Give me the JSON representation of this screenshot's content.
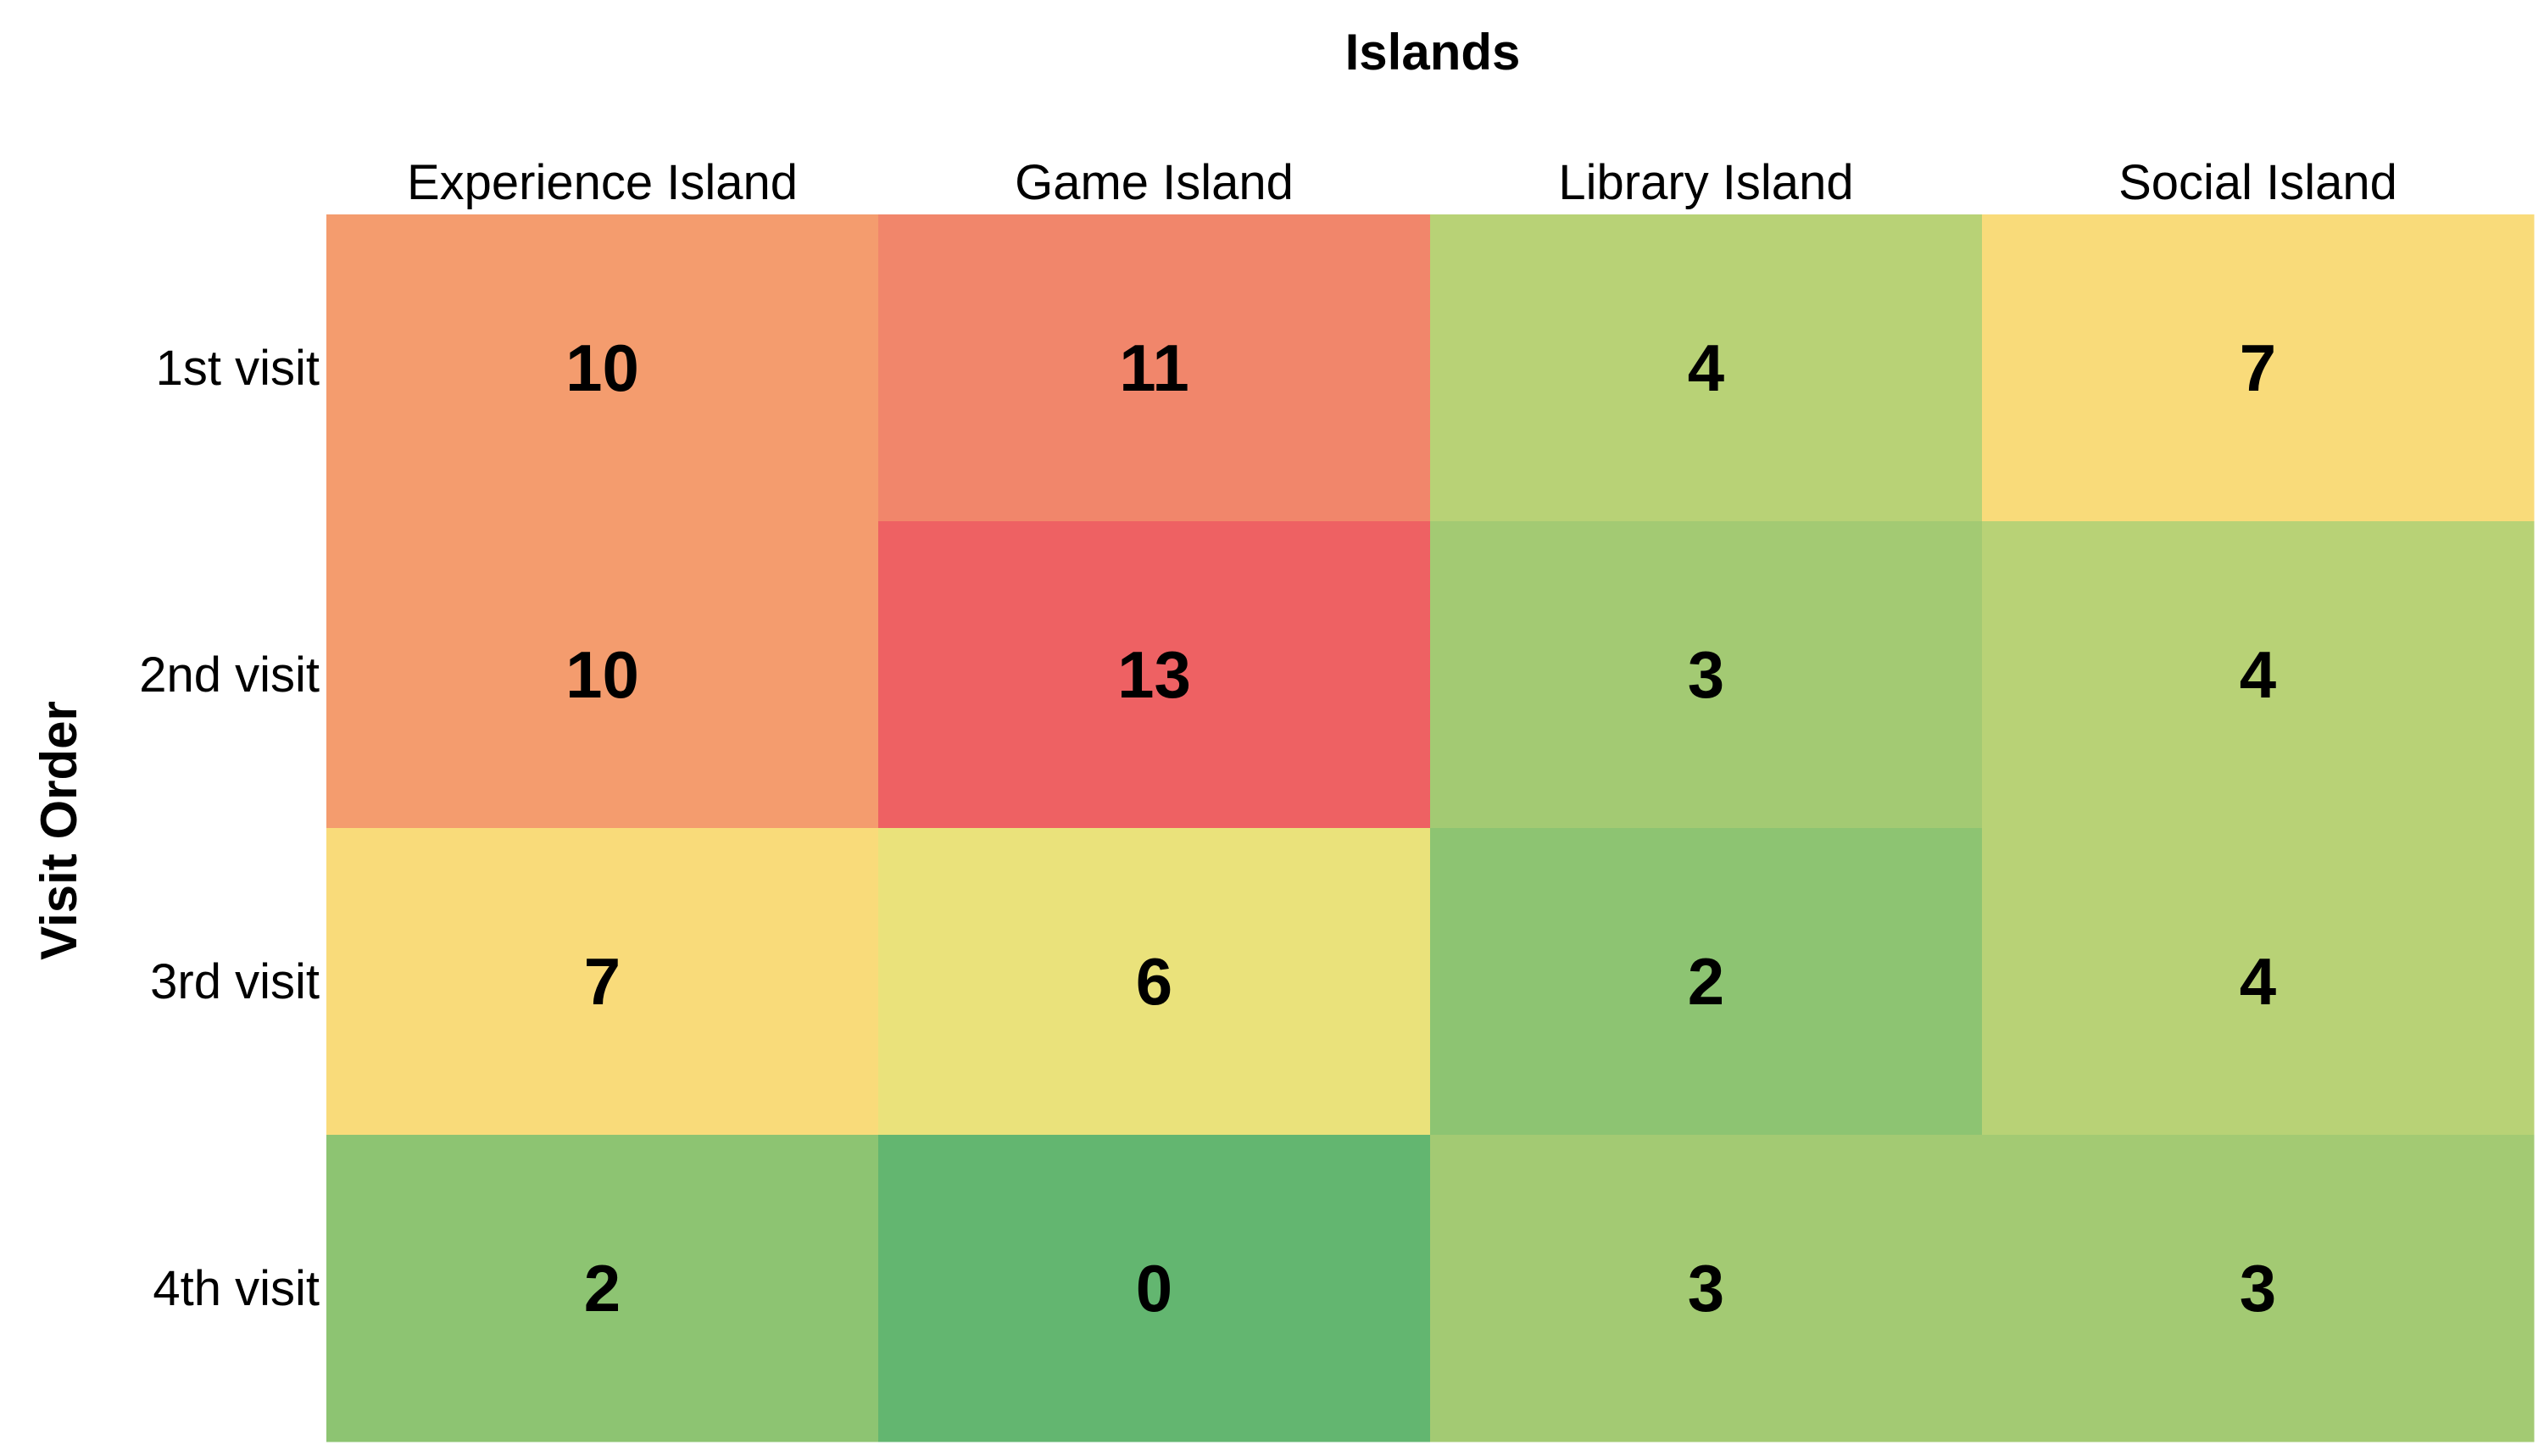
{
  "chart_data": {
    "type": "heatmap",
    "title": "",
    "xlabel": "Islands",
    "ylabel": "Visit Order",
    "x_position": "top",
    "columns": [
      "Experience Island",
      "Game Island",
      "Library Island",
      "Social Island"
    ],
    "rows": [
      "1st visit",
      "2nd visit",
      "3rd visit",
      "4th visit"
    ],
    "values": [
      [
        10,
        11,
        4,
        7
      ],
      [
        10,
        13,
        3,
        4
      ],
      [
        7,
        6,
        2,
        4
      ],
      [
        2,
        0,
        3,
        3
      ]
    ],
    "colormap": "green-yellow-red (RdYlGn reversed)",
    "color_range": [
      0,
      13
    ],
    "colorbar": false,
    "colors": {
      "low": "#63b670",
      "mid": "#f9e77c",
      "high": "#ee6163"
    }
  }
}
